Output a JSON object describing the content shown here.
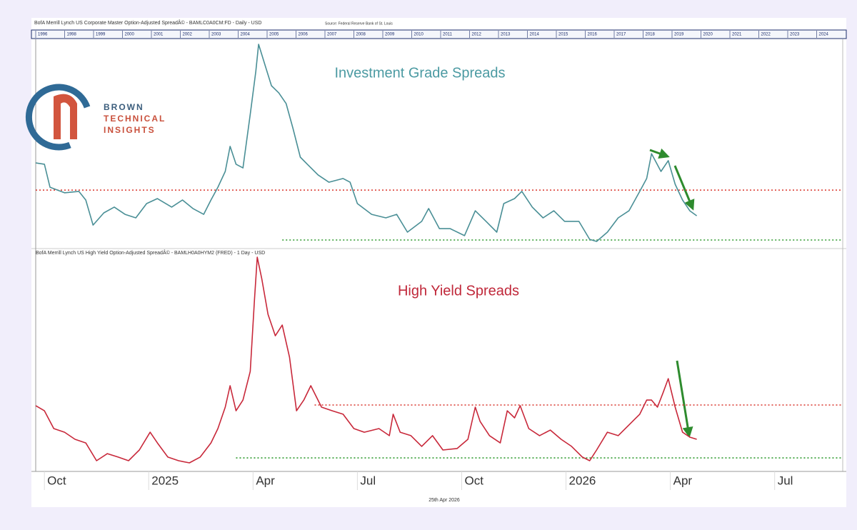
{
  "header": {
    "title": "BofA Merrill Lynch US Corporate Master Option-Adjusted SpreadÂ© - BAMLC0A0CM:FD - Daily - USD",
    "source": "Source: Federal Reserve Bank of St. Louis",
    "years": [
      "1996",
      "1998",
      "1999",
      "2000",
      "2001",
      "2002",
      "2003",
      "2004",
      "2005",
      "2006",
      "2007",
      "2008",
      "2009",
      "2010",
      "2011",
      "2012",
      "2013",
      "2014",
      "2015",
      "2016",
      "2017",
      "2018",
      "2019",
      "2020",
      "2021",
      "2022",
      "2023",
      "2024"
    ]
  },
  "logo": {
    "line1": "BROWN",
    "line2": "TECHNICAL",
    "line3": "INSIGHTS"
  },
  "footer": "25th Apr 2026",
  "chart_data": [
    {
      "type": "line",
      "annotation": "Investment Grade Spreads",
      "color": "#4a8f96",
      "annotation_color": "#4b9aa2",
      "xlim": [
        -0.25,
        23.06
      ],
      "ylim": [
        0,
        100
      ],
      "x": [
        -0.25,
        0,
        0.16,
        0.58,
        0.99,
        1.19,
        1.4,
        1.71,
        2.01,
        2.32,
        2.63,
        2.94,
        3.25,
        3.66,
        3.97,
        4.27,
        4.58,
        4.79,
        4.99,
        5.2,
        5.34,
        5.51,
        5.71,
        5.92,
        6.08,
        6.16,
        6.37,
        6.53,
        6.74,
        6.95,
        7.15,
        7.36,
        7.56,
        7.87,
        8.18,
        8.59,
        8.79,
        9,
        9.41,
        9.82,
        10.13,
        10.44,
        10.85,
        11.05,
        11.36,
        11.67,
        12.08,
        12.39,
        12.7,
        13.01,
        13.21,
        13.52,
        13.73,
        14.03,
        14.34,
        14.65,
        14.96,
        15.37,
        15.68,
        15.88,
        16.19,
        16.5,
        16.81,
        17.12,
        17.32,
        17.46,
        17.73,
        17.94,
        18.14,
        18.35,
        18.56,
        18.76
      ],
      "values": [
        40.3,
        39.7,
        28.6,
        25.9,
        26.6,
        22.4,
        10.3,
        16.2,
        19,
        15.5,
        13.8,
        20.7,
        23.1,
        19,
        22.4,
        18.3,
        15.5,
        22.4,
        28.6,
        36.2,
        48.3,
        39.7,
        37.9,
        63.8,
        84.5,
        97.6,
        86.2,
        77.6,
        74.1,
        69,
        56.9,
        43.1,
        39.7,
        34.5,
        31,
        32.8,
        31,
        20.7,
        15.5,
        13.8,
        15.5,
        6.9,
        12.1,
        18.3,
        8.6,
        8.6,
        5.2,
        17.2,
        12.1,
        6.9,
        20.7,
        23.1,
        26.6,
        19,
        13.8,
        17.2,
        12.1,
        12.1,
        3.4,
        2.4,
        6.9,
        13.8,
        17.2,
        26.6,
        32.8,
        44.8,
        36.2,
        41.4,
        30,
        22.4,
        17.2,
        14.8
      ],
      "reference_lines": [
        {
          "value": 27.2,
          "x_start": -0.25,
          "color": "#d9342b"
        },
        {
          "value": 3.1,
          "x_start": 6.84,
          "color": "#2e9a2e"
        }
      ]
    },
    {
      "type": "line",
      "subtitle": "BofA Merrill Lynch US High Yield Option-Adjusted SpreadÂ© - BAMLH0A0HYM2 (FRED) - 1 Day - USD",
      "annotation": "High Yield Spreads",
      "color": "#c8283a",
      "annotation_color": "#c0283a",
      "xlim": [
        -0.25,
        23.06
      ],
      "ylim": [
        0,
        100
      ],
      "x": [
        -0.25,
        0,
        0.27,
        0.58,
        0.88,
        1.19,
        1.5,
        1.81,
        2.12,
        2.42,
        2.73,
        3.04,
        3.25,
        3.55,
        3.86,
        4.17,
        4.48,
        4.79,
        4.99,
        5.2,
        5.34,
        5.51,
        5.71,
        5.92,
        6.04,
        6.12,
        6.25,
        6.43,
        6.64,
        6.84,
        7.05,
        7.25,
        7.46,
        7.66,
        7.97,
        8.28,
        8.59,
        8.9,
        9.2,
        9.62,
        9.92,
        10.03,
        10.23,
        10.54,
        10.85,
        11.16,
        11.46,
        11.87,
        12.18,
        12.39,
        12.53,
        12.8,
        13.11,
        13.31,
        13.52,
        13.68,
        13.93,
        14.24,
        14.55,
        14.86,
        15.16,
        15.47,
        15.68,
        15.88,
        16.19,
        16.5,
        16.81,
        17.12,
        17.32,
        17.46,
        17.63,
        17.79,
        17.94,
        18.14,
        18.35,
        18.56,
        18.76
      ],
      "values": [
        30.7,
        28.3,
        20,
        18.3,
        15,
        13.3,
        5,
        8.3,
        6.7,
        5,
        10,
        18.3,
        13.3,
        6.7,
        5,
        4,
        6.7,
        13.3,
        20,
        30,
        40,
        28.3,
        33.3,
        46.7,
        80,
        100,
        90,
        73.3,
        63.3,
        68.3,
        53.3,
        28.3,
        33.3,
        40,
        30,
        28.3,
        26.7,
        20,
        18.3,
        20,
        16.7,
        26.7,
        18.3,
        16.7,
        11.7,
        16.7,
        10,
        10.7,
        15,
        30,
        23.3,
        16.7,
        13.3,
        28.3,
        25,
        30.7,
        20,
        16.7,
        19.3,
        15,
        11.7,
        6.7,
        5,
        10,
        18.3,
        16.7,
        21.7,
        26.7,
        33.3,
        33.3,
        30,
        36.7,
        43.3,
        30,
        18.3,
        16,
        15
      ],
      "reference_lines": [
        {
          "value": 31,
          "x_start": 7.77,
          "color": "#d9342b"
        },
        {
          "value": 6.3,
          "x_start": 5.51,
          "color": "#2e9a2e"
        }
      ],
      "xticks": [
        {
          "value": 0,
          "label": "Oct"
        },
        {
          "value": 3,
          "label": "2025"
        },
        {
          "value": 6,
          "label": "Apr"
        },
        {
          "value": 9,
          "label": "Jul"
        },
        {
          "value": 12,
          "label": "Oct"
        },
        {
          "value": 15,
          "label": "2026"
        },
        {
          "value": 18,
          "label": "Apr"
        },
        {
          "value": 21,
          "label": "Jul"
        }
      ]
    }
  ]
}
